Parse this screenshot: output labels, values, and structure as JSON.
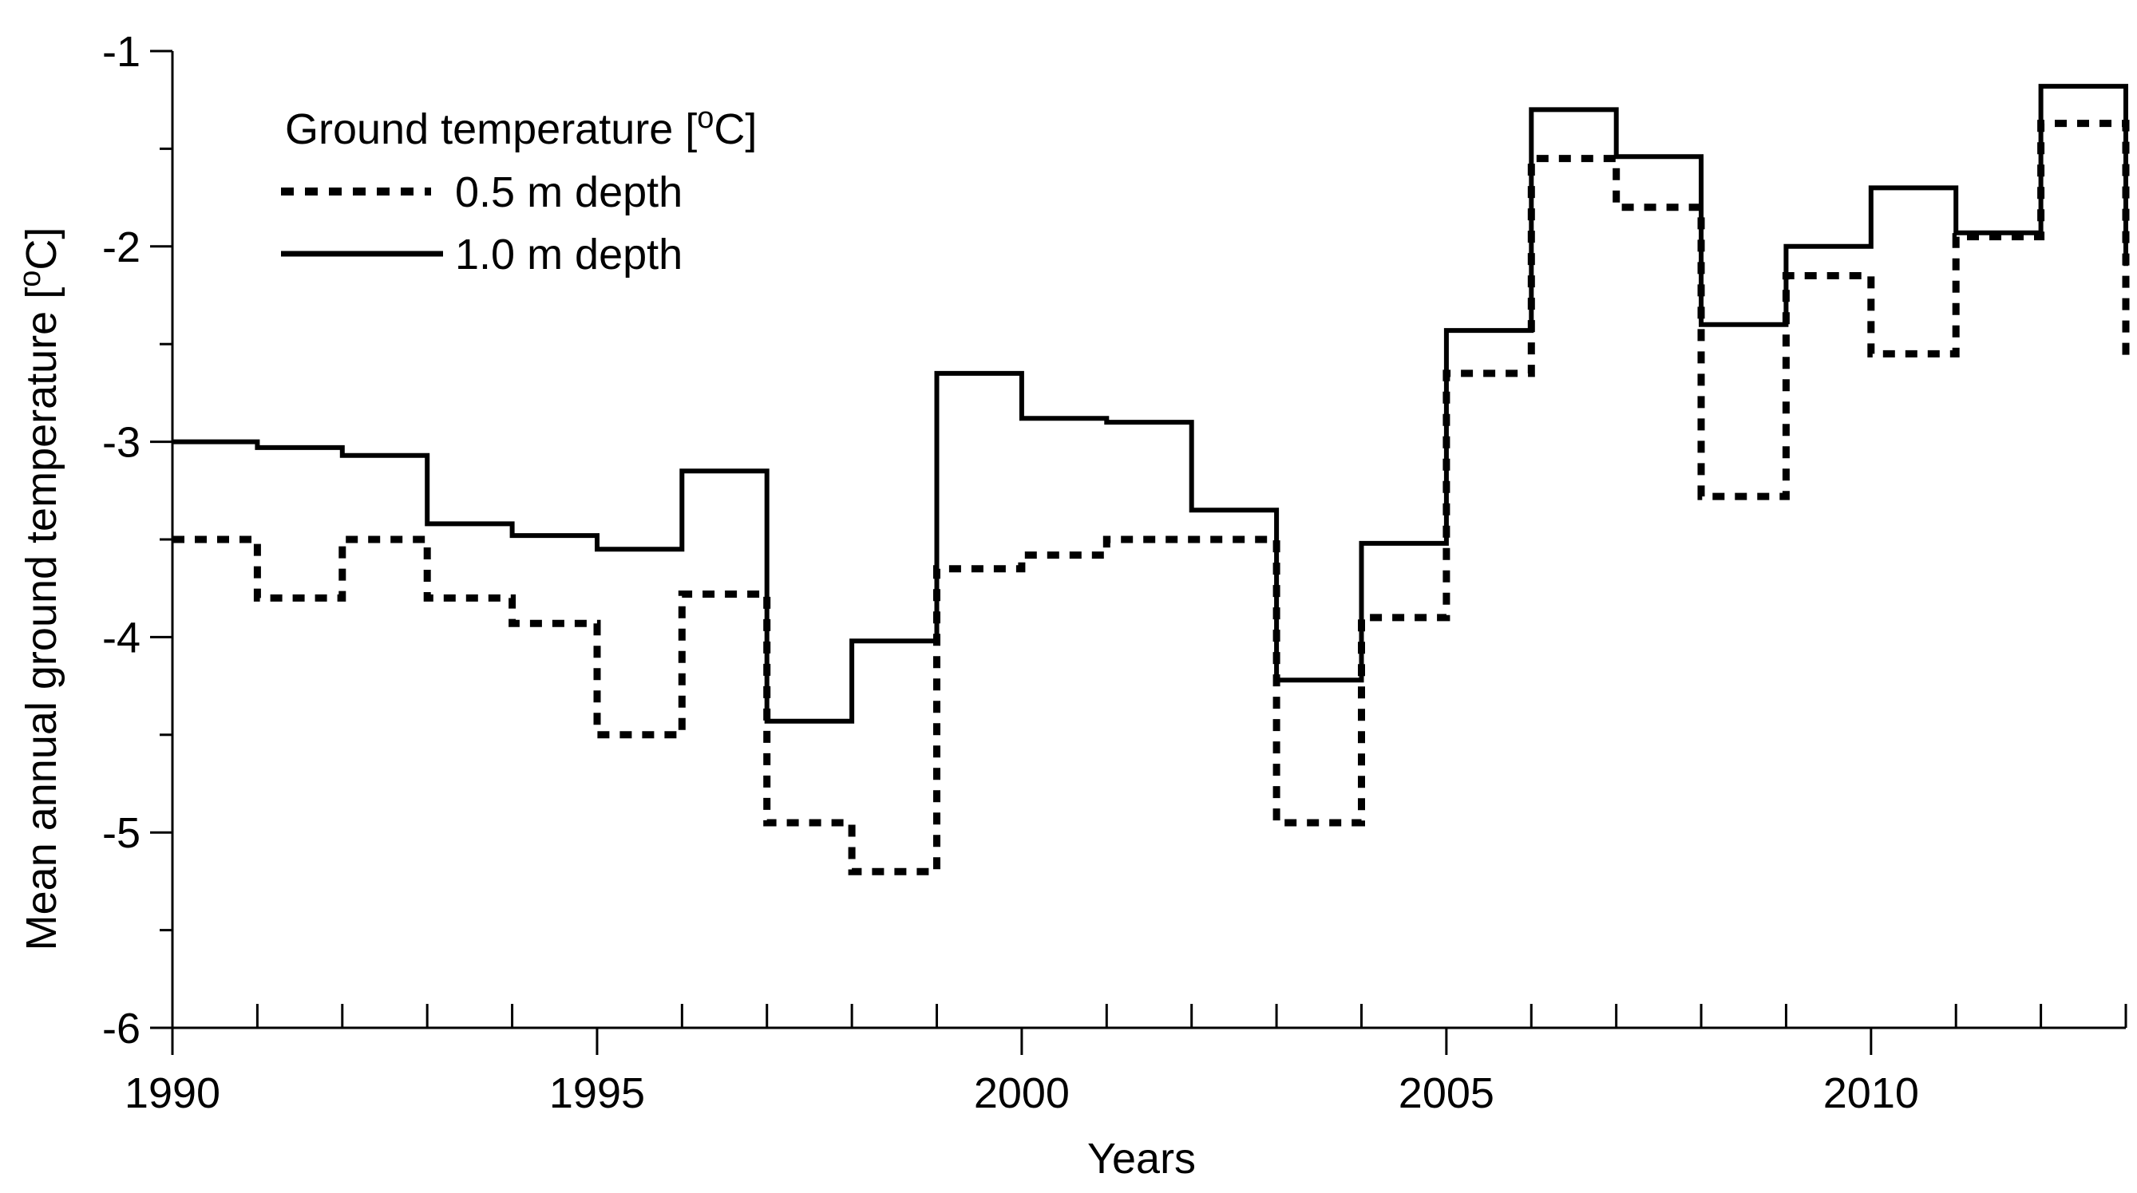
{
  "chart_data": {
    "type": "line",
    "step": "post",
    "title": "",
    "xlabel": "Years",
    "ylabel": {
      "main": "Mean annual ground temperature [",
      "sup": "o",
      "unit": "C]"
    },
    "xlim": [
      1990,
      2013
    ],
    "ylim": [
      -6,
      -1
    ],
    "x_major_ticks": [
      1990,
      1995,
      2000,
      2005,
      2010
    ],
    "x_minor_ticks": [
      1991,
      1992,
      1993,
      1994,
      1996,
      1997,
      1998,
      1999,
      2001,
      2002,
      2003,
      2004,
      2006,
      2007,
      2008,
      2009,
      2011,
      2012,
      2013
    ],
    "x_tick_labels": [
      "1990",
      "1995",
      "2000",
      "2005",
      "2010"
    ],
    "y_major_ticks": [
      -6,
      -5,
      -4,
      -3,
      -2,
      -1
    ],
    "y_minor_ticks": [
      -5.5,
      -4.5,
      -3.5,
      -2.5,
      -1.5
    ],
    "y_tick_labels": [
      "-6",
      "-5",
      "-4",
      "-3",
      "-2",
      "-1"
    ],
    "legend": {
      "title": {
        "main": "Ground temperature [",
        "sup": "o",
        "unit": "C]"
      },
      "entries": [
        "0.5 m depth",
        "1.0 m depth"
      ],
      "placement": "top-left"
    },
    "series": [
      {
        "name": "0.5 m depth",
        "style": "dotted",
        "segments": [
          {
            "x0": 1990,
            "x1": 1991,
            "y": -3.5
          },
          {
            "x0": 1991,
            "x1": 1992,
            "y": -3.8
          },
          {
            "x0": 1992,
            "x1": 1993,
            "y": -3.5
          },
          {
            "x0": 1993,
            "x1": 1994,
            "y": -3.8
          },
          {
            "x0": 1994,
            "x1": 1995,
            "y": -3.93
          },
          {
            "x0": 1995,
            "x1": 1996,
            "y": -4.5
          },
          {
            "x0": 1996,
            "x1": 1997,
            "y": -3.78
          },
          {
            "x0": 1997,
            "x1": 1998,
            "y": -4.95
          },
          {
            "x0": 1998,
            "x1": 1999,
            "y": -5.2
          },
          {
            "x0": 1999,
            "x1": 2000,
            "y": -3.65
          },
          {
            "x0": 2000,
            "x1": 2001,
            "y": -3.58
          },
          {
            "x0": 2001,
            "x1": 2002,
            "y": -3.5
          },
          {
            "x0": 2002,
            "x1": 2003,
            "y": -3.5
          },
          {
            "x0": 2003,
            "x1": 2004,
            "y": -4.95
          },
          {
            "x0": 2004,
            "x1": 2005,
            "y": -3.9
          },
          {
            "x0": 2005,
            "x1": 2006,
            "y": -2.65
          },
          {
            "x0": 2006,
            "x1": 2007,
            "y": -1.55
          },
          {
            "x0": 2007,
            "x1": 2008,
            "y": -1.8
          },
          {
            "x0": 2008,
            "x1": 2009,
            "y": -3.28
          },
          {
            "x0": 2009,
            "x1": 2010,
            "y": -2.15
          },
          {
            "x0": 2010,
            "x1": 2011,
            "y": -2.55
          },
          {
            "x0": 2011,
            "x1": 2012,
            "y": -1.95
          },
          {
            "x0": 2012,
            "x1": 2013,
            "y": -1.37
          },
          {
            "x0": 2013,
            "x1": 2013,
            "y": -2.6
          }
        ]
      },
      {
        "name": "1.0 m depth",
        "style": "solid",
        "segments": [
          {
            "x0": 1990,
            "x1": 1991,
            "y": -3.0
          },
          {
            "x0": 1991,
            "x1": 1992,
            "y": -3.03
          },
          {
            "x0": 1992,
            "x1": 1993,
            "y": -3.07
          },
          {
            "x0": 1993,
            "x1": 1994,
            "y": -3.42
          },
          {
            "x0": 1994,
            "x1": 1995,
            "y": -3.48
          },
          {
            "x0": 1995,
            "x1": 1996,
            "y": -3.55
          },
          {
            "x0": 1996,
            "x1": 1997,
            "y": -3.15
          },
          {
            "x0": 1997,
            "x1": 1998,
            "y": -4.43
          },
          {
            "x0": 1998,
            "x1": 1999,
            "y": -4.02
          },
          {
            "x0": 1999,
            "x1": 2000,
            "y": -2.65
          },
          {
            "x0": 2000,
            "x1": 2001,
            "y": -2.88
          },
          {
            "x0": 2001,
            "x1": 2002,
            "y": -2.9
          },
          {
            "x0": 2002,
            "x1": 2003,
            "y": -3.35
          },
          {
            "x0": 2003,
            "x1": 2004,
            "y": -4.22
          },
          {
            "x0": 2004,
            "x1": 2005,
            "y": -3.52
          },
          {
            "x0": 2005,
            "x1": 2006,
            "y": -2.43
          },
          {
            "x0": 2006,
            "x1": 2007,
            "y": -1.3
          },
          {
            "x0": 2007,
            "x1": 2008,
            "y": -1.54
          },
          {
            "x0": 2008,
            "x1": 2009,
            "y": -2.4
          },
          {
            "x0": 2009,
            "x1": 2010,
            "y": -2.0
          },
          {
            "x0": 2010,
            "x1": 2011,
            "y": -1.7
          },
          {
            "x0": 2011,
            "x1": 2012,
            "y": -1.93
          },
          {
            "x0": 2012,
            "x1": 2013,
            "y": -1.18
          },
          {
            "x0": 2013,
            "x1": 2013,
            "y": -2.1
          }
        ]
      }
    ]
  },
  "colors": {
    "line": "#000000",
    "background": "#ffffff"
  }
}
